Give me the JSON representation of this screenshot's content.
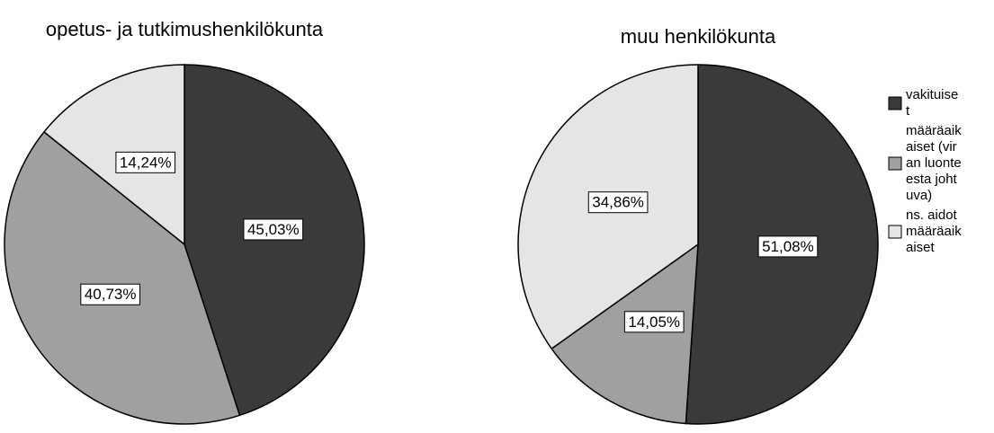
{
  "chart_data": [
    {
      "type": "pie",
      "title": "opetus- ja tutkimushenkilökunta",
      "values": [
        45.03,
        40.73,
        14.24
      ],
      "value_labels": [
        "45,03%",
        "40,73%",
        "14,24%"
      ]
    },
    {
      "type": "pie",
      "title": "muu henkilökunta",
      "values": [
        51.08,
        14.05,
        34.86
      ],
      "value_labels": [
        "51,08%",
        "14,05%",
        "34,86%"
      ]
    }
  ],
  "legend": {
    "labels": [
      "vakituiset",
      "määräaikaiset (viran luonteesta johtuva)",
      "ns. aidot määräaikaiset"
    ],
    "colors": [
      "#3a3a3a",
      "#a0a0a0",
      "#e5e5e5"
    ],
    "position": "right"
  }
}
